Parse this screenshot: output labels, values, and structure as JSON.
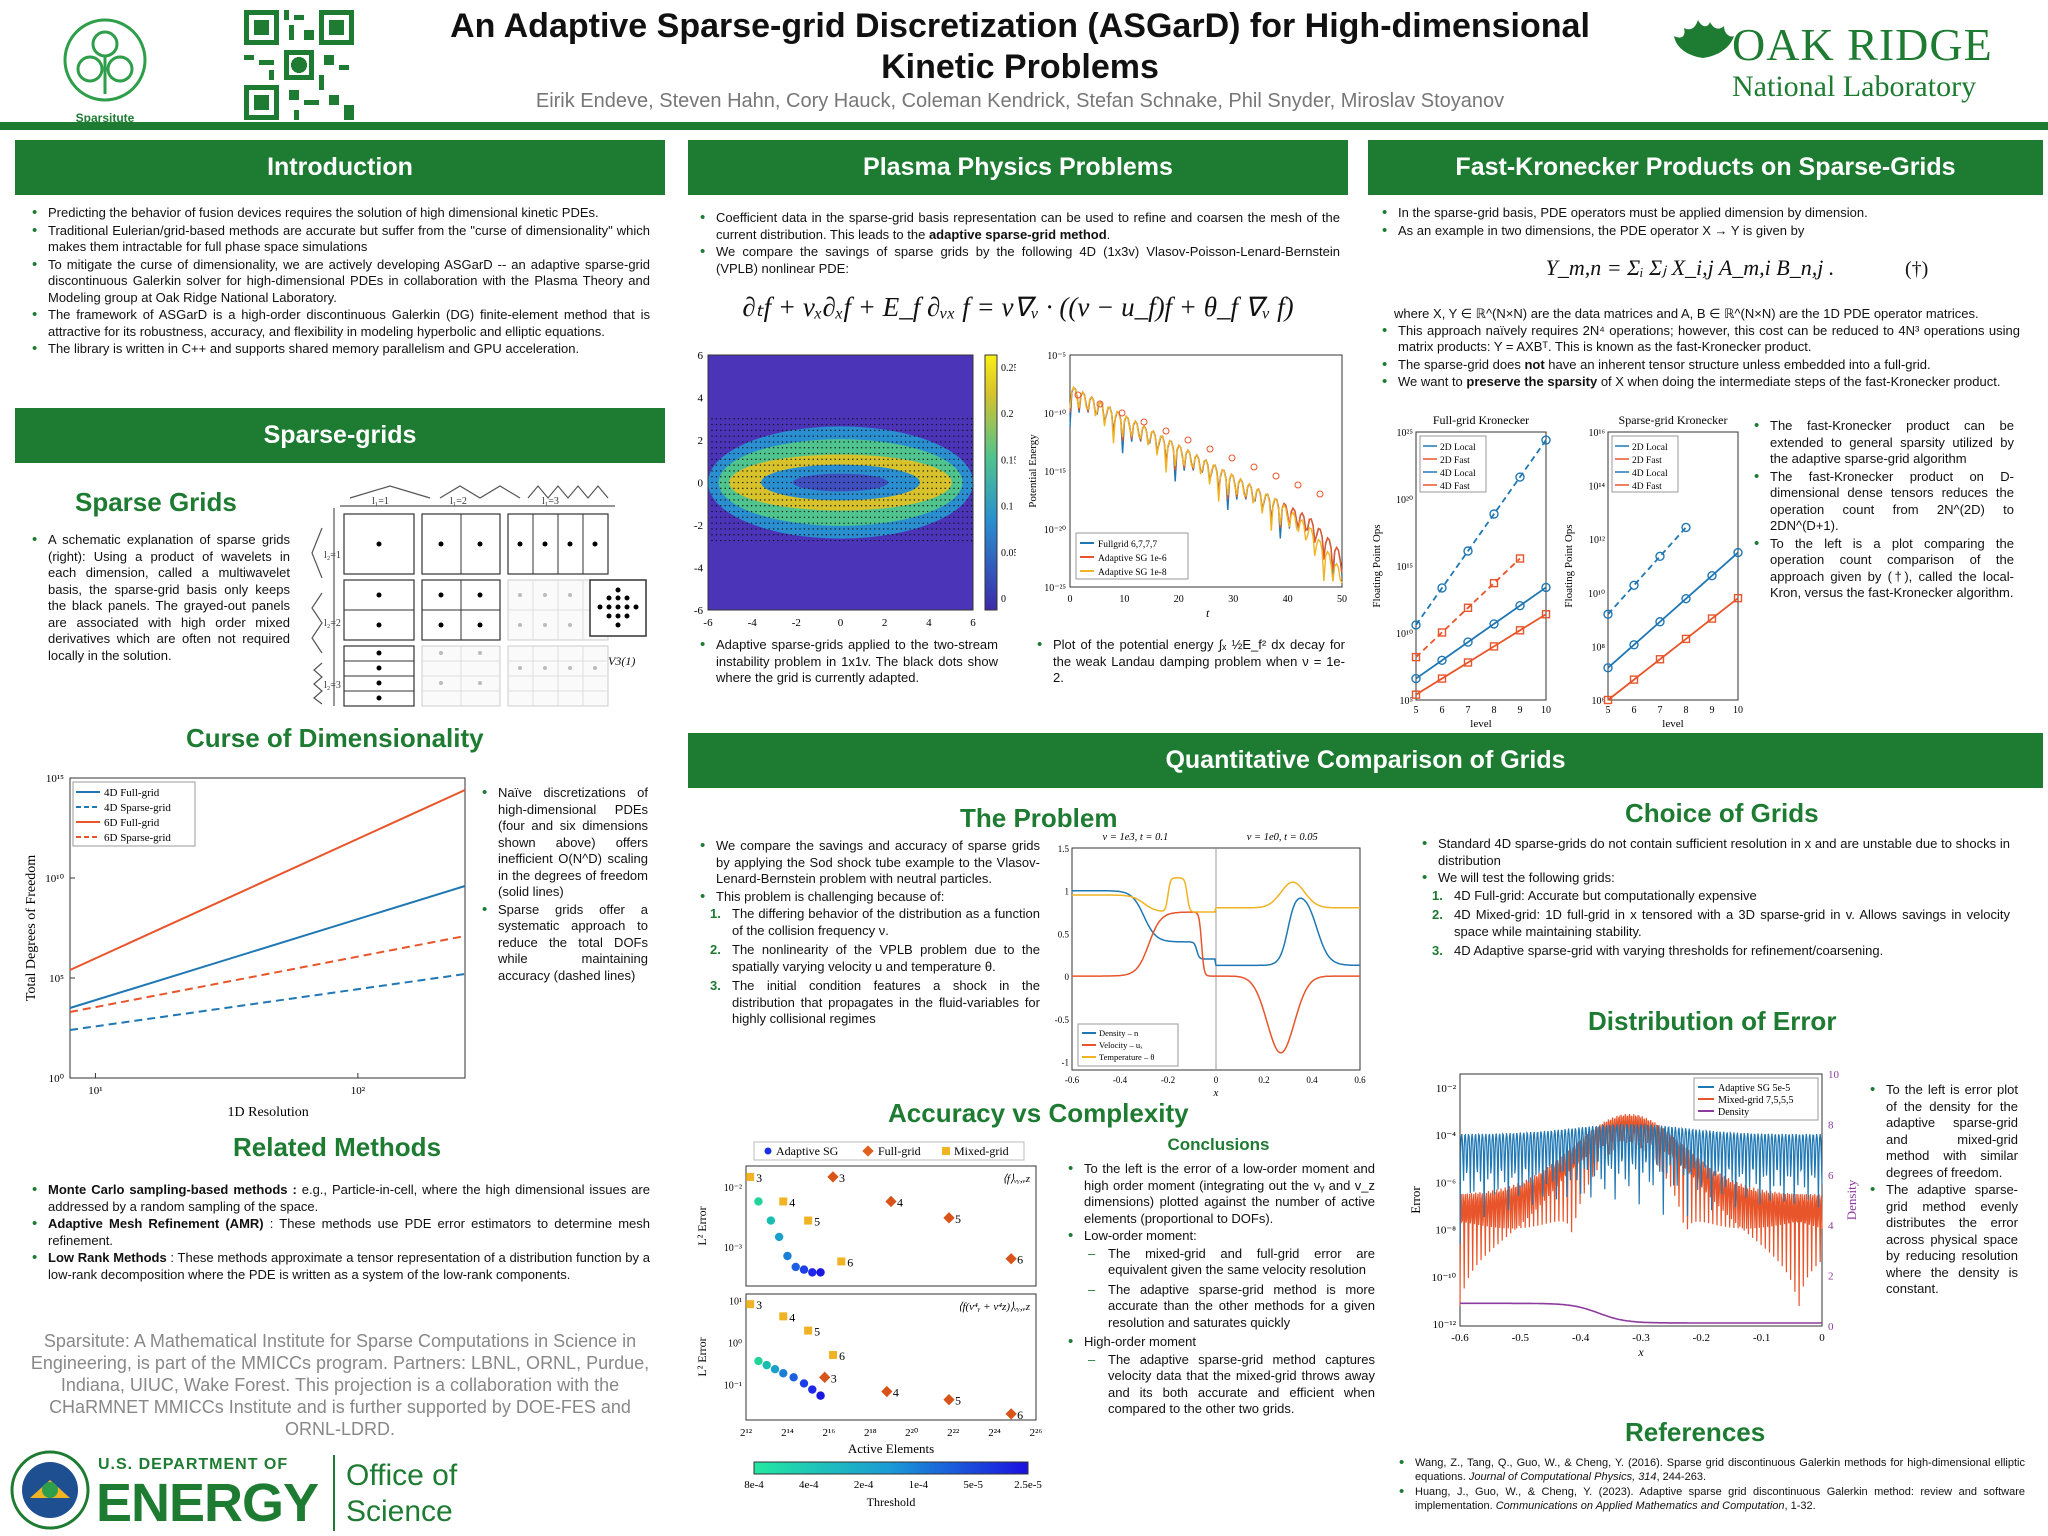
{
  "header": {
    "title_line1": "An Adaptive Sparse-grid Discretization (ASGarD) for High-dimensional",
    "title_line2": "Kinetic Problems",
    "authors": "Eirik Endeve, Steven Hahn, Cory Hauck, Coleman Kendrick, Stefan Schnake, Phil Snyder, Miroslav Stoyanov",
    "sparsitute_label": "Sparsitute",
    "ornl_line1": "OAK RIDGE",
    "ornl_line2": "National Laboratory"
  },
  "sections": {
    "introduction": "Introduction",
    "sparse_grids": "Sparse-grids",
    "plasma": "Plasma Physics Problems",
    "kron": "Fast-Kronecker Products on Sparse-Grids",
    "quant": "Quantitative Comparison of Grids"
  },
  "intro_bullets": [
    "Predicting the behavior of fusion devices requires the solution of high dimensional kinetic PDEs.",
    "Traditional Eulerian/grid-based methods are accurate but suffer from the \"curse of dimensionality\" which makes them intractable for full phase space simulations",
    "To mitigate the curse of dimensionality, we are actively developing ASGarD -- an adaptive sparse-grid discontinuous Galerkin solver for high-dimensional PDEs in collaboration with the Plasma Theory and Modeling group at Oak Ridge National Laboratory.",
    "The framework of ASGarD is a high-order discontinuous Galerkin (DG) finite-element method that is attractive for its robustness, accuracy, and flexibility in modeling hyperbolic and elliptic equations.",
    "The library is written in C++ and supports shared memory parallelism and GPU acceleration."
  ],
  "sparse": {
    "heading": "Sparse Grids",
    "text": "A schematic explanation of sparse grids (right): Using a product of wavelets in each dimension, called a multiwavelet basis, the sparse-grid basis only keeps the black panels. The grayed-out panels are associated with high order mixed derivatives which are often not required locally in the solution.",
    "col_labels": [
      "l1=1",
      "l1=2",
      "l1=3"
    ],
    "row_labels": [
      "l2=1",
      "l2=2",
      "l2=3"
    ],
    "v_label": "V3(1)"
  },
  "curse": {
    "heading": "Curse of Dimensionality",
    "bullet1": "Naïve discretizations of high-dimensional PDEs (four and six dimensions shown above) offers inefficient O(N^D) scaling in the degrees of freedom (solid lines)",
    "bullet2": "Sparse grids offer a systematic approach to reduce the total DOFs while maintaining accuracy (dashed lines)"
  },
  "curse_chart": {
    "type": "line",
    "xlabel": "1D Resolution",
    "ylabel": "Total Degrees of Freedom",
    "xticks": [
      "10¹",
      "10²"
    ],
    "yticks": [
      "10⁰",
      "10⁵",
      "10¹⁰",
      "10¹⁵"
    ],
    "series": [
      {
        "name": "4D Full-grid",
        "color": "#1f77b4",
        "dash": false,
        "x": [
          8,
          256
        ],
        "log10y": [
          3.5,
          9.6
        ]
      },
      {
        "name": "4D Sparse-grid",
        "color": "#1f77b4",
        "dash": true,
        "x": [
          8,
          256
        ],
        "log10y": [
          2.4,
          5.2
        ]
      },
      {
        "name": "6D Full-grid",
        "color": "#e8552a",
        "dash": false,
        "x": [
          8,
          256
        ],
        "log10y": [
          5.4,
          14.4
        ]
      },
      {
        "name": "6D Sparse-grid",
        "color": "#e8552a",
        "dash": true,
        "x": [
          8,
          256
        ],
        "log10y": [
          3.3,
          7.1
        ]
      }
    ]
  },
  "related": {
    "heading": "Related Methods",
    "items": [
      {
        "bold": "Monte Carlo sampling-based methods :",
        "text": " e.g., Particle-in-cell, where the high dimensional issues are addressed by a random sampling of the space."
      },
      {
        "bold": "Adaptive Mesh Refinement (AMR)",
        "text": " : These methods use PDE error estimators to determine mesh refinement."
      },
      {
        "bold": "Low Rank Methods",
        "text": " : These methods approximate a tensor representation of a distribution function by a low-rank decomposition where the PDE is written as a system of the low-rank components."
      }
    ]
  },
  "sparsitute_blurb": "Sparsitute: A Mathematical Institute for Sparse Computations in Science in Engineering, is part of the MMICCs program. Partners: LBNL, ORNL, Purdue, Indiana, UIUC, Wake Forest. This projection is a collaboration with the CHaRMNET MMICCs Institute and is further supported by DOE-FES and ORNL-LDRD.",
  "doe": {
    "line1": "U.S. DEPARTMENT OF",
    "line2": "ENERGY",
    "office1": "Office of",
    "office2": "Science"
  },
  "plasma": {
    "b1a": "Coefficient data in the sparse-grid basis representation can be used to refine and coarsen the mesh of the current distribution. This leads to the ",
    "b1b": "adaptive sparse-grid method",
    "b1c": ".",
    "b2": "We compare the savings of sparse grids by the following 4D (1x3v) Vlasov-Poisson-Lenard-Bernstein (VPLB) nonlinear PDE:",
    "equation": "∂ₜf + vₓ∂ₓf + E_f ∂ᵥₓ f = ν∇ᵥ · ((v − u_f)f + θ_f ∇ᵥ f)",
    "cap1": "Adaptive sparse-grids applied to the two-stream instability problem in 1x1v. The black dots show where the grid is currently adapted.",
    "cap2a": "Plot of the potential energy ∫ₓ ½E_f² dx decay for the weak Landau damping problem when",
    "cap2b": "ν = 1e-2."
  },
  "heatmap": {
    "xticks": [
      "-6",
      "-4",
      "-2",
      "0",
      "2",
      "4",
      "6"
    ],
    "yticks": [
      "6",
      "4",
      "2",
      "0",
      "-2",
      "-4",
      "-6"
    ],
    "cticks": [
      "0.25",
      "0.2",
      "0.15",
      "0.1",
      "0.05",
      "0"
    ]
  },
  "landau": {
    "xlabel": "t",
    "ylabel": "Potential Energy",
    "xticks": [
      "0",
      "10",
      "20",
      "30",
      "40",
      "50"
    ],
    "yticks": [
      "10⁻⁵",
      "10⁻¹⁰",
      "10⁻¹⁵",
      "10⁻²⁰",
      "10⁻²⁵"
    ],
    "legend": [
      "Fullgrid 6,7,7,7",
      "Adaptive SG 1e-6",
      "Adaptive SG 1e-8"
    ]
  },
  "kron": {
    "b1": "In the sparse-grid basis, PDE operators must be applied dimension by dimension.",
    "b2": "As an example in two dimensions, the PDE operator X → Y is given by",
    "eq": "Y_m,n = Σᵢ Σⱼ X_i,j A_m,i B_n,j .",
    "dagger": "(†)",
    "where": "where X, Y ∈ ℝ^(N×N) are the data matrices and A, B ∈ ℝ^(N×N) are the 1D PDE operator matrices.",
    "b3": "This approach naïvely requires 2N⁴ operations; however, this cost can be reduced to 4N³ operations using matrix products: Y = AXBᵀ. This is known as the fast-Kronecker product.",
    "b4a": "The sparse-grid does ",
    "b4b": "not",
    "b4c": " have an inherent tensor structure unless embedded into a full-grid.",
    "b5a": "We want to ",
    "b5b": "preserve the sparsity",
    "b5c": " of X when doing the intermediate steps of the fast-Kronecker product.",
    "r1": "The fast-Kronecker product can be extended to general sparsity utilized by the adaptive sparse-grid algorithm",
    "r2": "The fast-Kronecker product on D-dimensional dense tensors reduces the operation count from 2N^(2D) to 2DN^(D+1).",
    "r3": "To the left is a plot comparing the operation count comparison of the approach given by (†), called the local-Kron, versus the fast-Kronecker algorithm."
  },
  "kron_charts": [
    {
      "title": "Full-grid Kronecker",
      "yticks": [
        "10²⁵",
        "10²⁰",
        "10¹⁵",
        "10¹⁰",
        "10⁵"
      ],
      "xlabel": "level",
      "ylabel": "Floating Point Ops",
      "xticks": [
        "5",
        "6",
        "7",
        "8",
        "9",
        "10"
      ]
    },
    {
      "title": "Sparse-grid Kronecker",
      "yticks": [
        "10¹⁶",
        "10¹⁴",
        "10¹²",
        "10¹⁰",
        "10⁸",
        "10⁶"
      ],
      "xlabel": "level",
      "ylabel": "Floating Point Ops",
      "xticks": [
        "5",
        "6",
        "7",
        "8",
        "9",
        "10"
      ]
    }
  ],
  "kron_legend": [
    "2D Local",
    "2D Fast",
    "4D Local",
    "4D Fast"
  ],
  "problem": {
    "heading": "The Problem",
    "b1": "We compare the savings and accuracy of sparse grids by applying the Sod shock tube example to the Vlasov-Lenard-Bernstein problem with neutral particles.",
    "b2": "This problem is challenging because of:",
    "items": [
      "The differing behavior of the distribution as a function of the collision frequency ν.",
      "The nonlinearity of the VPLB problem due to the spatially varying velocity u and temperature θ.",
      "The initial condition features a shock in the distribution that propagates in the fluid-variables for highly collisional regimes"
    ],
    "title_left": "ν = 1e3, t = 0.1",
    "title_right": "ν = 1e0, t = 0.05",
    "xlabel": "x",
    "xticks": [
      "-0.6",
      "-0.4",
      "-0.2",
      "0",
      "0.2",
      "0.4",
      "0.6"
    ],
    "yticks": [
      "1.5",
      "1",
      "0.5",
      "0",
      "-0.5",
      "-1"
    ],
    "legend": [
      "Density – n",
      "Velocity – uₓ",
      "Temperature – θ"
    ]
  },
  "accuracy": {
    "heading": "Accuracy vs Complexity",
    "legend": [
      "Adaptive SG",
      "Full-grid",
      "Mixed-grid"
    ],
    "ylabel": "L² Error",
    "xlabel": "Active Elements",
    "panel1_label": "⟨f⟩ᵥᵧ,ᵥz",
    "panel2_label": "⟨f(v⁴ᵧ + v⁴z)⟩ᵥᵧ,ᵥz",
    "xticks": [
      "2¹²",
      "2¹⁴",
      "2¹⁶",
      "2¹⁸",
      "2²⁰",
      "2²²",
      "2²⁴",
      "2²⁶"
    ],
    "p1_yticks": [
      "10⁻²",
      "10⁻³"
    ],
    "p2_yticks": [
      "10¹",
      "10⁰",
      "10⁻¹"
    ],
    "cbar_ticks": [
      "8e-4",
      "4e-4",
      "2e-4",
      "1e-4",
      "5e-5",
      "2.5e-5"
    ],
    "cbar_label": "Threshold",
    "fg_labels": [
      "3",
      "4",
      "5",
      "6"
    ],
    "mg_labels": [
      "3",
      "4",
      "5",
      "6"
    ]
  },
  "accuracy_chart": {
    "type": "scatter",
    "panel1": {
      "adaptive": [
        [
          12.6,
          -1.65
        ],
        [
          13.2,
          -2.0
        ],
        [
          13.6,
          -2.3
        ],
        [
          14.0,
          -2.65
        ],
        [
          14.4,
          -2.85
        ],
        [
          14.8,
          -2.9
        ],
        [
          15.2,
          -2.95
        ],
        [
          15.6,
          -2.95
        ]
      ],
      "full": [
        [
          16.2,
          -1.2
        ],
        [
          19.0,
          -1.65
        ],
        [
          21.8,
          -1.95
        ],
        [
          24.8,
          -2.7
        ]
      ],
      "mixed": [
        [
          12.2,
          -1.2
        ],
        [
          13.8,
          -1.65
        ],
        [
          15.0,
          -2.0
        ],
        [
          16.6,
          -2.75
        ]
      ]
    },
    "panel2": {
      "adaptive": [
        [
          12.6,
          -0.45
        ],
        [
          13.0,
          -0.55
        ],
        [
          13.4,
          -0.65
        ],
        [
          13.8,
          -0.75
        ],
        [
          14.3,
          -0.85
        ],
        [
          14.8,
          -1.0
        ],
        [
          15.2,
          -1.15
        ],
        [
          15.6,
          -1.3
        ]
      ],
      "full": [
        [
          15.8,
          -0.85
        ],
        [
          18.8,
          -1.2
        ],
        [
          21.8,
          -1.4
        ],
        [
          24.8,
          -1.75
        ]
      ],
      "mixed": [
        [
          12.2,
          0.95
        ],
        [
          13.8,
          0.65
        ],
        [
          15.0,
          0.3
        ],
        [
          16.2,
          -0.3
        ]
      ]
    }
  },
  "conclusions": {
    "heading": "Conclusions",
    "b1": "To the left is the error of a low-order moment and high order moment (integrating out the vᵧ and v_z dimensions) plotted against the number of active elements (proportional to DOFs).",
    "b2": "Low-order moment:",
    "d1": "The mixed-grid and full-grid error are equivalent given the same velocity resolution",
    "d2": "The adaptive sparse-grid method is more accurate than the other methods for a given resolution and saturates quickly",
    "b3": "High-order moment",
    "d3": "The adaptive sparse-grid method captures velocity data that the mixed-grid throws away and its both accurate and efficient when compared to the other two grids."
  },
  "choice": {
    "heading": "Choice of Grids",
    "b1": "Standard 4D sparse-grids do not contain sufficient resolution in x and are unstable due to shocks in distribution",
    "b2": "We will test the following grids:",
    "items": [
      "4D Full-grid: Accurate but computationally expensive",
      "4D Mixed-grid: 1D full-grid in x tensored with a 3D sparse-grid in v.  Allows savings in velocity space while maintaining stability.",
      "4D Adaptive sparse-grid with varying thresholds for refinement/coarsening."
    ]
  },
  "error": {
    "heading": "Distribution of Error",
    "legend": [
      "Adaptive SG 5e-5",
      "Mixed-grid 7,5,5,5",
      "Density"
    ],
    "xlabel": "x",
    "ylabel": "Error",
    "ylabel2": "Density",
    "xticks": [
      "-0.6",
      "-0.5",
      "-0.4",
      "-0.3",
      "-0.2",
      "-0.1",
      "0"
    ],
    "yticks": [
      "10⁻²",
      "10⁻⁴",
      "10⁻⁶",
      "10⁻⁸",
      "10⁻¹⁰",
      "10⁻¹²"
    ],
    "y2ticks": [
      "10",
      "8",
      "6",
      "4",
      "2",
      "0"
    ],
    "b1": "To the left is error plot of the density for the adaptive sparse-grid and mixed-grid method with similar degrees of freedom.",
    "b2": "The adaptive sparse-grid method evenly distributes the error across physical space by reducing resolution where the density is constant."
  },
  "references": {
    "heading": "References",
    "r1a": "Wang, Z., Tang, Q., Guo, W., & Cheng, Y. (2016). Sparse grid discontinuous Galerkin methods for high-dimensional elliptic equations. ",
    "r1b": "Journal of Computational Physics, 314",
    "r1c": ", 244-263.",
    "r2a": "Huang, J., Guo, W., & Cheng, Y. (2023). Adaptive sparse grid discontinuous Galerkin method: review and software implementation. ",
    "r2b": "Communications on Applied Mathematics and Computation",
    "r2c": ", 1-32."
  },
  "colors": {
    "green": "#1e7b32",
    "blue": "#1f77b4",
    "orange": "#e8552a",
    "gold": "#f0b323",
    "purple": "#8e3b9e"
  }
}
